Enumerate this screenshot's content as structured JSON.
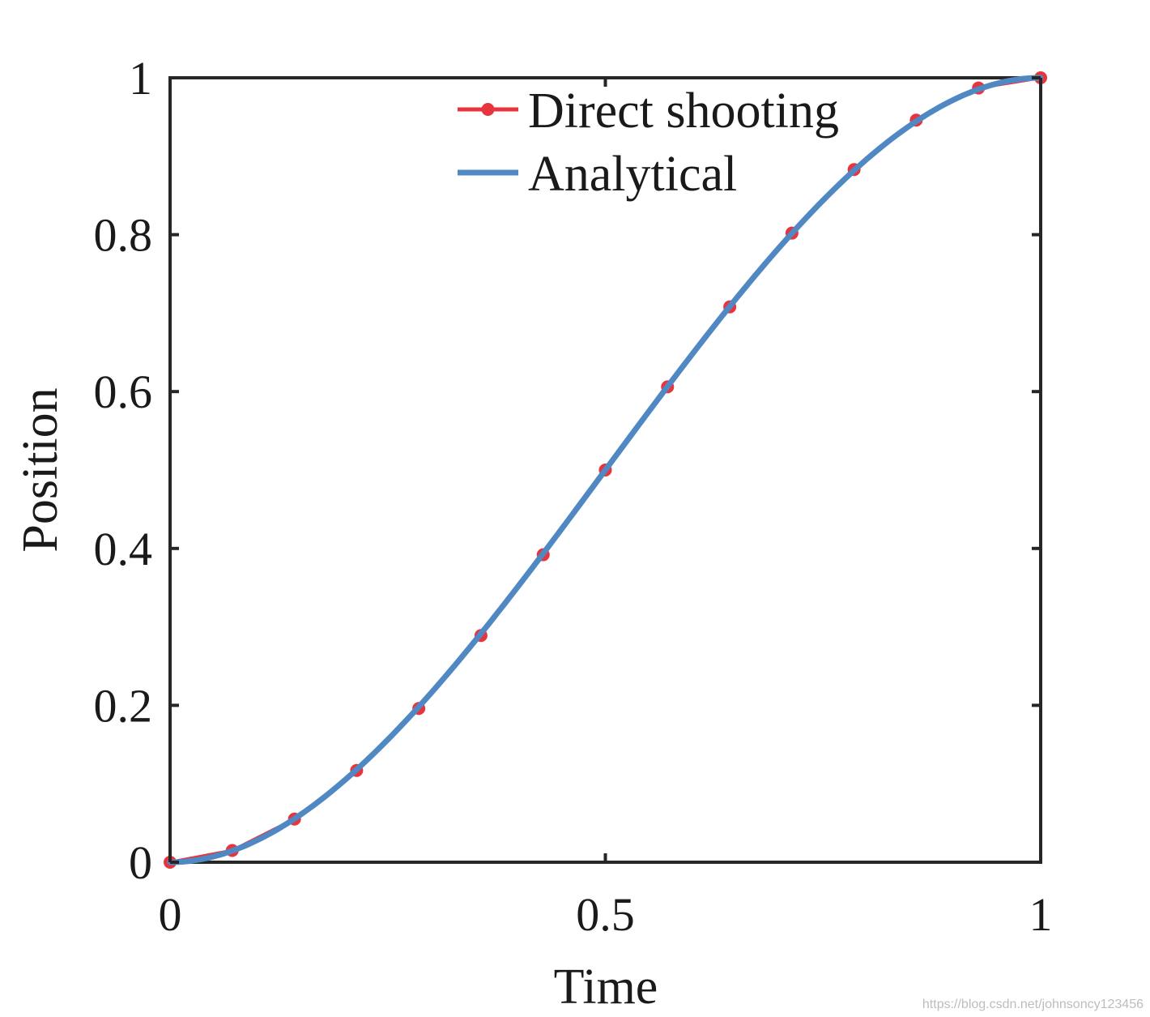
{
  "chart_data": {
    "type": "line",
    "xlabel": "Time",
    "ylabel": "Position",
    "xlim": [
      0,
      1
    ],
    "ylim": [
      0,
      1
    ],
    "xticks": [
      0,
      0.5,
      1
    ],
    "xtick_labels": [
      "0",
      "0.5",
      "1"
    ],
    "yticks": [
      0,
      0.2,
      0.4,
      0.6,
      0.8,
      1
    ],
    "ytick_labels": [
      "0",
      "0.2",
      "0.4",
      "0.6",
      "0.8",
      "1"
    ],
    "grid": false,
    "legend_position": "top-center",
    "series": [
      {
        "name": "Direct shooting",
        "color": "#e8343c",
        "marker": "circle",
        "x": [
          0,
          0.0714,
          0.1429,
          0.2143,
          0.2857,
          0.3571,
          0.4286,
          0.5,
          0.5714,
          0.6429,
          0.7143,
          0.7857,
          0.8571,
          0.9286,
          1.0
        ],
        "y": [
          0.0,
          0.015,
          0.055,
          0.117,
          0.196,
          0.289,
          0.392,
          0.5,
          0.606,
          0.708,
          0.802,
          0.883,
          0.946,
          0.987,
          1.0
        ]
      },
      {
        "name": "Analytical",
        "color": "#4f88c2",
        "marker": "none",
        "function": "3t^2 - 2t^3",
        "x": [
          0,
          0.05,
          0.1,
          0.15,
          0.2,
          0.25,
          0.3,
          0.35,
          0.4,
          0.45,
          0.5,
          0.55,
          0.6,
          0.65,
          0.7,
          0.75,
          0.8,
          0.85,
          0.9,
          0.95,
          1.0
        ],
        "y": [
          0.0,
          0.00725,
          0.028,
          0.06075,
          0.104,
          0.15625,
          0.216,
          0.28175,
          0.352,
          0.42525,
          0.5,
          0.57475,
          0.648,
          0.71825,
          0.784,
          0.84375,
          0.896,
          0.93925,
          0.972,
          0.99275,
          1.0
        ]
      }
    ]
  },
  "watermark": "https://blog.csdn.net/johnsoncy123456"
}
